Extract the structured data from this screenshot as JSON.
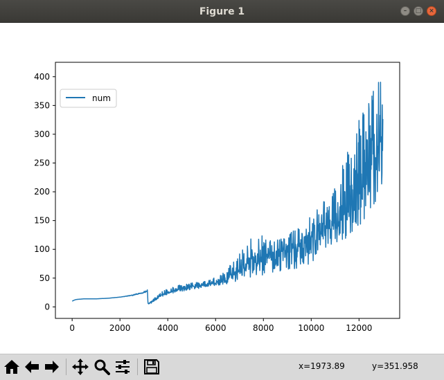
{
  "window": {
    "title": "Figure 1"
  },
  "toolbar": {
    "buttons": [
      "home-icon",
      "back-arrow-icon",
      "forward-arrow-icon",
      "pan-icon",
      "zoom-icon",
      "subplots-icon",
      "save-icon"
    ],
    "x_readout": "x=1973.89",
    "y_readout": "y=351.958"
  },
  "chart_data": {
    "type": "line",
    "title": "",
    "xlabel": "",
    "ylabel": "",
    "xlim": [
      -700,
      13700
    ],
    "ylim": [
      -20,
      425
    ],
    "xticks": [
      0,
      2000,
      4000,
      6000,
      8000,
      10000,
      12000
    ],
    "yticks": [
      0,
      50,
      100,
      150,
      200,
      250,
      300,
      350,
      400
    ],
    "grid": false,
    "legend": "top-left",
    "series": [
      {
        "name": "num",
        "color": "#1f77b4",
        "trend_x": [
          0,
          100,
          200,
          500,
          1000,
          1500,
          2000,
          2500,
          2800,
          3000,
          3100,
          3150,
          3170,
          3200,
          3300,
          3500,
          3800,
          4000,
          4500,
          5000,
          5500,
          6000,
          6500,
          7000,
          7500,
          8000,
          8500,
          9000,
          9500,
          10000,
          10500,
          11000,
          11500,
          12000,
          12500,
          12700,
          12800,
          12900,
          12950,
          13000
        ],
        "trend_y": [
          10,
          12,
          13,
          14,
          14,
          15,
          17,
          20,
          23,
          25,
          27,
          29,
          6,
          5,
          8,
          14,
          22,
          25,
          30,
          35,
          38,
          42,
          50,
          62,
          75,
          85,
          95,
          98,
          105,
          118,
          130,
          150,
          170,
          200,
          250,
          270,
          280,
          285,
          260,
          280
        ],
        "upper_y": [
          10,
          12,
          13,
          14,
          14,
          15,
          17,
          21,
          24,
          27,
          29,
          30,
          10,
          8,
          11,
          18,
          28,
          32,
          38,
          42,
          45,
          52,
          70,
          95,
          120,
          130,
          125,
          130,
          140,
          160,
          190,
          220,
          270,
          330,
          380,
          395,
          405,
          400,
          350,
          360
        ],
        "lower_y": [
          10,
          12,
          13,
          14,
          14,
          15,
          17,
          19,
          22,
          24,
          26,
          28,
          4,
          3,
          6,
          12,
          18,
          22,
          26,
          30,
          33,
          36,
          40,
          45,
          52,
          55,
          60,
          62,
          68,
          75,
          90,
          110,
          120,
          140,
          170,
          180,
          200,
          210,
          210,
          220
        ]
      }
    ]
  }
}
